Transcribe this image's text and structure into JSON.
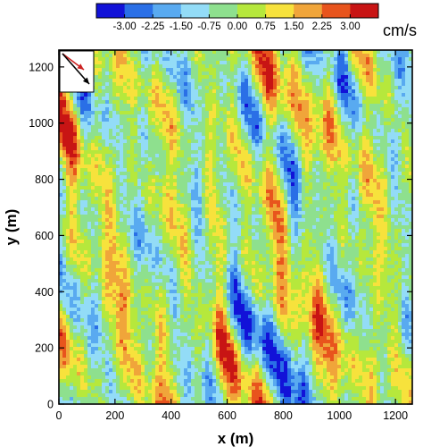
{
  "chart_data": {
    "type": "heatmap",
    "title": "",
    "xlabel": "x (m)",
    "ylabel": "y (m)",
    "xlim": [
      0,
      1260
    ],
    "ylim": [
      0,
      1260
    ],
    "x_ticks": [
      0,
      200,
      400,
      600,
      800,
      1000,
      1200
    ],
    "y_ticks": [
      0,
      200,
      400,
      600,
      800,
      1000,
      1200
    ],
    "colorbar": {
      "unit": "cm/s",
      "tick_labels": [
        "-3.00",
        "-2.25",
        "-1.50",
        "-0.75",
        "0.00",
        "0.75",
        "1.50",
        "2.25",
        "3.00"
      ],
      "levels": [
        -3.0,
        -2.25,
        -1.5,
        -0.75,
        0.0,
        0.75,
        1.5,
        2.25,
        3.0
      ],
      "colors": [
        "#1212d8",
        "#2a6fe6",
        "#59aaf0",
        "#93dcf7",
        "#8ee08e",
        "#b6e83c",
        "#f7e23c",
        "#f0a53a",
        "#e8541d",
        "#c81414"
      ],
      "placement": "top"
    },
    "inset": {
      "placement": "top-left",
      "arrows": [
        {
          "color": "#cc2222"
        },
        {
          "color": "#000000"
        }
      ]
    },
    "field_description_orientation_deg": -30
  }
}
